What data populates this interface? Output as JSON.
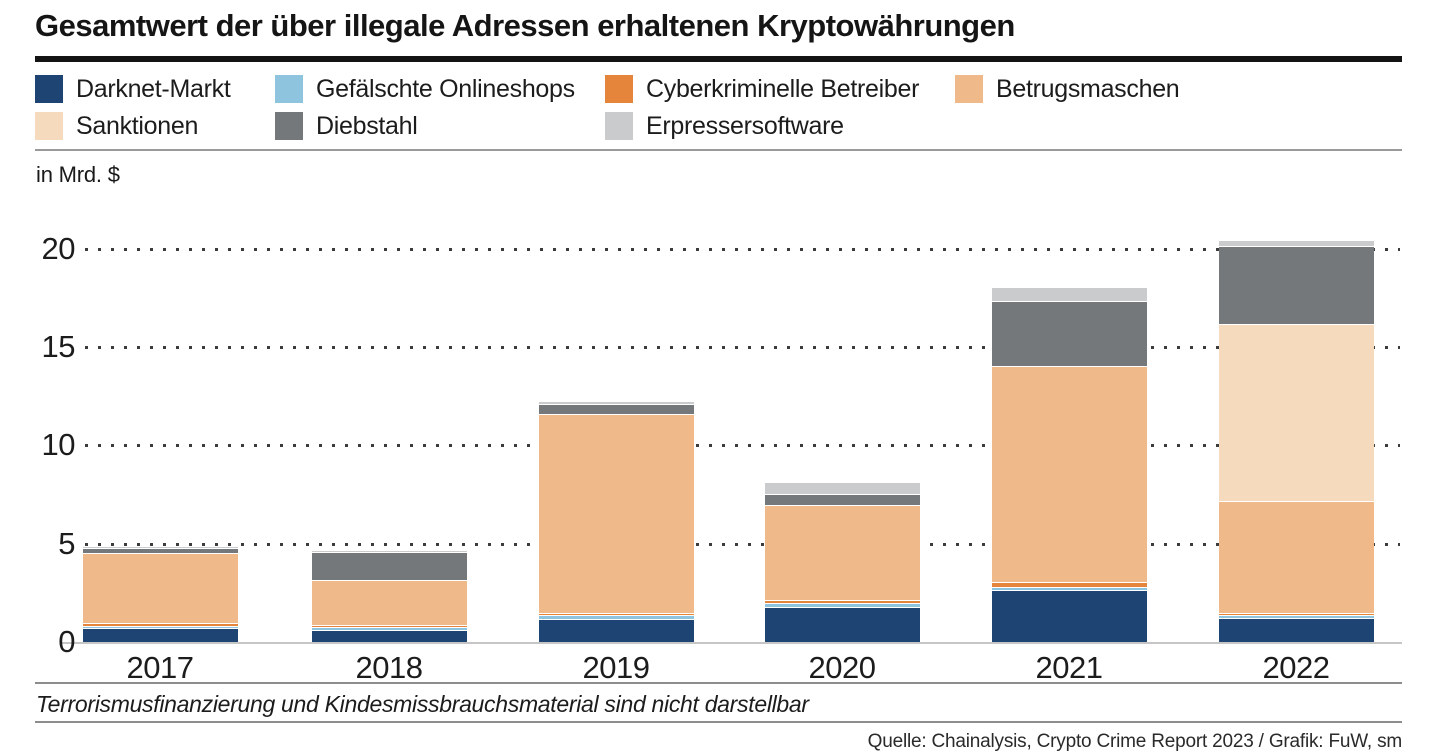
{
  "page": {
    "title": "Gesamtwert der über illegale Adressen erhaltenen Kryptowährungen",
    "unit_label": "in Mrd. $",
    "footnote": "Terrorismusfinanzierung und Kindesmissbrauchsmaterial sind nicht darstellbar",
    "source": "Quelle: Chainalysis, Crypto Crime Report 2023 / Grafik: FuW, sm"
  },
  "legend": {
    "items": [
      {
        "label": "Darknet-Markt",
        "color": "#1e4473"
      },
      {
        "label": "Gefälschte Onlineshops",
        "color": "#8ec4dd"
      },
      {
        "label": "Cyberkriminelle Betreiber",
        "color": "#e5853c"
      },
      {
        "label": "Betrugsmaschen",
        "color": "#f0b98a"
      },
      {
        "label": "Sanktionen",
        "color": "#f6dabd"
      },
      {
        "label": "Diebstahl",
        "color": "#75787b"
      },
      {
        "label": "Erpressersoftware",
        "color": "#c9cbcd"
      }
    ]
  },
  "chart_data": {
    "type": "bar",
    "stacked": true,
    "title": "Gesamtwert der über illegale Adressen erhaltenen Kryptowährungen",
    "ylabel": "in Mrd. $",
    "ylim": [
      0,
      21
    ],
    "yticks": [
      0,
      5,
      10,
      15,
      20
    ],
    "grid": "dotted horizontal gridlines",
    "legend_position": "top",
    "categories": [
      "2017",
      "2018",
      "2019",
      "2020",
      "2021",
      "2022"
    ],
    "series": [
      {
        "name": "Darknet-Markt",
        "color": "#1e4473",
        "values": [
          0.7,
          0.6,
          1.15,
          1.8,
          2.65,
          1.2
        ]
      },
      {
        "name": "Gefälschte Onlineshops",
        "color": "#8ec4dd",
        "values": [
          0.04,
          0.15,
          0.18,
          0.2,
          0.17,
          0.15
        ]
      },
      {
        "name": "Cyberkriminelle Betreiber",
        "color": "#e5853c",
        "values": [
          0.15,
          0.03,
          0.05,
          0.15,
          0.25,
          0.1
        ]
      },
      {
        "name": "Betrugsmaschen",
        "color": "#f0b98a",
        "values": [
          3.55,
          2.3,
          10.1,
          4.85,
          11.0,
          5.7
        ]
      },
      {
        "name": "Sanktionen",
        "color": "#f6dabd",
        "values": [
          0,
          0,
          0,
          0,
          0,
          9.0
        ]
      },
      {
        "name": "Diebstahl",
        "color": "#75787b",
        "values": [
          0.25,
          1.42,
          0.5,
          0.56,
          3.3,
          3.95
        ]
      },
      {
        "name": "Erpressersoftware",
        "color": "#c9cbcd",
        "values": [
          0.05,
          0.03,
          0.15,
          0.63,
          0.73,
          0.3
        ]
      }
    ],
    "totals_approx": [
      4.74,
      4.53,
      12.13,
      8.19,
      18.1,
      20.4
    ]
  }
}
